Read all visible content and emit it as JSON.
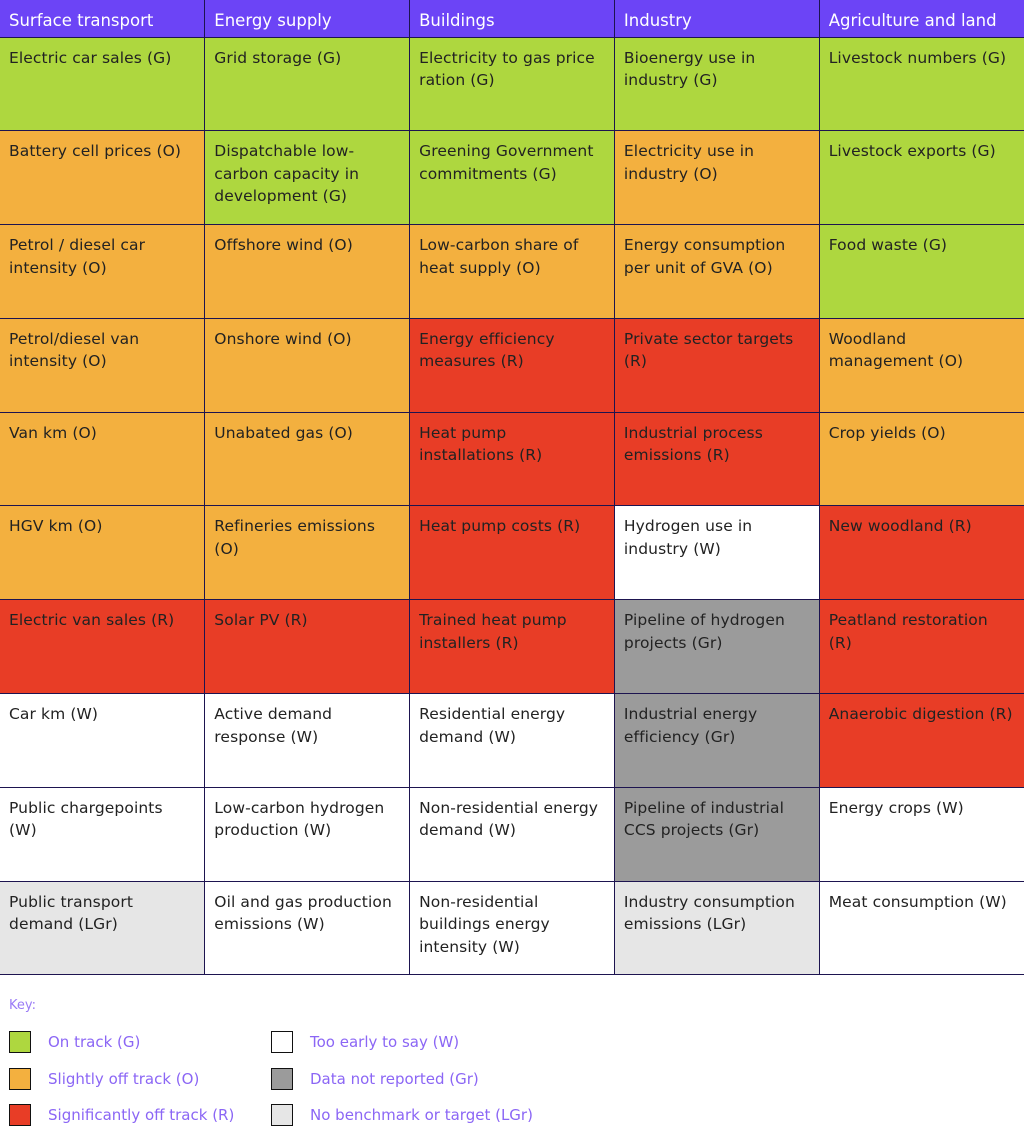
{
  "colors": {
    "G": "#aed73f",
    "O": "#f3b03f",
    "R": "#e83d26",
    "W": "#ffffff",
    "Gr": "#9b9b9b",
    "LGr": "#e6e6e6",
    "header": "#6c44f6"
  },
  "headers": [
    "Surface transport",
    "Energy supply",
    "Buildings",
    "Industry",
    "Agriculture and land"
  ],
  "rows": [
    [
      {
        "text": "Electric car sales (G)",
        "status": "G"
      },
      {
        "text": "Grid storage (G)",
        "status": "G"
      },
      {
        "text": "Electricity to gas price ration (G)",
        "status": "G"
      },
      {
        "text": "Bioenergy use in industry (G)",
        "status": "G"
      },
      {
        "text": "Livestock numbers (G)",
        "status": "G"
      }
    ],
    [
      {
        "text": "Battery cell prices (O)",
        "status": "O"
      },
      {
        "text": "Dispatchable low-carbon capacity in development (G)",
        "status": "G"
      },
      {
        "text": "Greening Government commitments (G)",
        "status": "G"
      },
      {
        "text": "Electricity use in industry (O)",
        "status": "O"
      },
      {
        "text": "Livestock exports (G)",
        "status": "G"
      }
    ],
    [
      {
        "text": "Petrol / diesel car intensity (O)",
        "status": "O"
      },
      {
        "text": "Offshore wind (O)",
        "status": "O"
      },
      {
        "text": "Low-carbon share of heat supply (O)",
        "status": "O"
      },
      {
        "text": "Energy consumption per unit of GVA (O)",
        "status": "O"
      },
      {
        "text": "Food waste (G)",
        "status": "G"
      }
    ],
    [
      {
        "text": "Petrol/diesel van intensity (O)",
        "status": "O"
      },
      {
        "text": "Onshore wind (O)",
        "status": "O"
      },
      {
        "text": "Energy efficiency measures (R)",
        "status": "R"
      },
      {
        "text": "Private sector targets (R)",
        "status": "R"
      },
      {
        "text": "Woodland management (O)",
        "status": "O"
      }
    ],
    [
      {
        "text": "Van km (O)",
        "status": "O"
      },
      {
        "text": "Unabated gas (O)",
        "status": "O"
      },
      {
        "text": "Heat pump installations (R)",
        "status": "R"
      },
      {
        "text": "Industrial process emissions (R)",
        "status": "R"
      },
      {
        "text": "Crop yields (O)",
        "status": "O"
      }
    ],
    [
      {
        "text": "HGV km (O)",
        "status": "O"
      },
      {
        "text": "Refineries emissions (O)",
        "status": "O"
      },
      {
        "text": "Heat pump costs (R)",
        "status": "R"
      },
      {
        "text": "Hydrogen use in industry (W)",
        "status": "W"
      },
      {
        "text": "New woodland (R)",
        "status": "R"
      }
    ],
    [
      {
        "text": "Electric van sales (R)",
        "status": "R"
      },
      {
        "text": "Solar PV (R)",
        "status": "R"
      },
      {
        "text": "Trained heat pump installers (R)",
        "status": "R"
      },
      {
        "text": "Pipeline of hydrogen projects (Gr)",
        "status": "Gr"
      },
      {
        "text": "Peatland restoration (R)",
        "status": "R"
      }
    ],
    [
      {
        "text": "Car km (W)",
        "status": "W"
      },
      {
        "text": "Active demand response (W)",
        "status": "W"
      },
      {
        "text": "Residential energy demand (W)",
        "status": "W"
      },
      {
        "text": "Industrial energy efficiency (Gr)",
        "status": "Gr"
      },
      {
        "text": "Anaerobic digestion (R)",
        "status": "R"
      }
    ],
    [
      {
        "text": "Public chargepoints (W)",
        "status": "W"
      },
      {
        "text": "Low-carbon hydrogen production (W)",
        "status": "W"
      },
      {
        "text": "Non-residential energy demand (W)",
        "status": "W"
      },
      {
        "text": "Pipeline of industrial CCS projects (Gr)",
        "status": "Gr"
      },
      {
        "text": "Energy crops (W)",
        "status": "W"
      }
    ],
    [
      {
        "text": "Public transport demand (LGr)",
        "status": "LGr"
      },
      {
        "text": "Oil and gas production emissions (W)",
        "status": "W"
      },
      {
        "text": "Non-residential buildings energy intensity (W)",
        "status": "W"
      },
      {
        "text": "Industry consumption emissions (LGr)",
        "status": "LGr"
      },
      {
        "text": "Meat consumption (W)",
        "status": "W"
      }
    ]
  ],
  "key": {
    "title": "Key:",
    "items": [
      {
        "label": "On track (G)",
        "status": "G"
      },
      {
        "label": "Slightly off track (O)",
        "status": "O"
      },
      {
        "label": "Significantly off track (R)",
        "status": "R"
      },
      {
        "label": "Too early to say (W)",
        "status": "W"
      },
      {
        "label": "Data not reported (Gr)",
        "status": "Gr"
      },
      {
        "label": "No benchmark or target (LGr)",
        "status": "LGr"
      }
    ]
  }
}
